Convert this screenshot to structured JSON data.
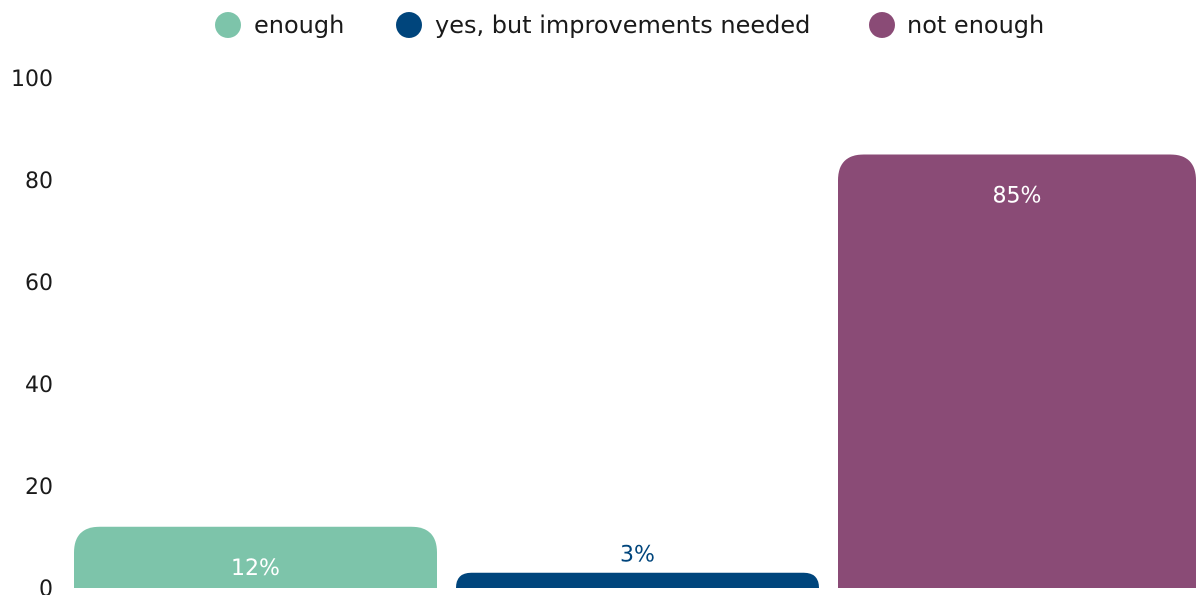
{
  "chart_data": {
    "type": "bar",
    "categories": [
      "enough",
      "yes, but improvements needed",
      "not enough"
    ],
    "values": [
      12,
      3,
      85
    ],
    "value_labels": [
      "12%",
      "3%",
      "85%"
    ],
    "colors": [
      "#7dc4aa",
      "#00457c",
      "#8a4b76"
    ],
    "label_colors": [
      "#ffffff",
      "#00457c",
      "#ffffff"
    ],
    "label_position": [
      "inside",
      "above",
      "inside"
    ],
    "ylim": [
      0,
      100
    ],
    "yticks": [
      0,
      20,
      40,
      60,
      80,
      100
    ],
    "ytick_labels": [
      "0",
      "20",
      "40",
      "60",
      "80",
      "100"
    ],
    "legend": {
      "position": "top-center",
      "items": [
        {
          "label": "enough",
          "color": "#7dc4aa"
        },
        {
          "label": "yes, but improvements needed",
          "color": "#00457c"
        },
        {
          "label": "not enough",
          "color": "#8a4b76"
        }
      ]
    },
    "grid": false,
    "title": "",
    "xlabel": "",
    "ylabel": ""
  }
}
